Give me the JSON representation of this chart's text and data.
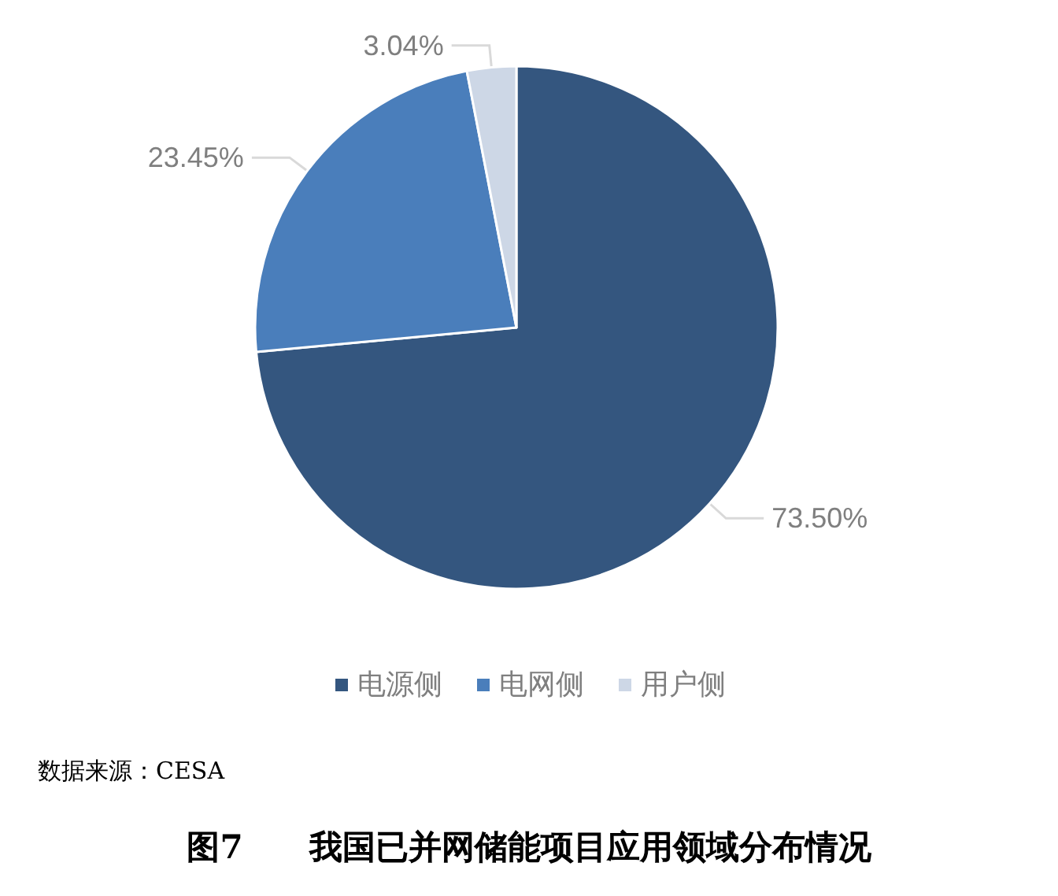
{
  "chart_data": {
    "type": "pie",
    "title": "图7　　我国已并网储能项目应用领域分布情况",
    "categories": [
      "电源侧",
      "电网侧",
      "用户侧"
    ],
    "values": [
      73.5,
      23.45,
      3.04
    ],
    "colors": [
      "#34567f",
      "#4a7ebb",
      "#cdd7e6"
    ],
    "value_labels": [
      "73.50%",
      "23.45%",
      "3.04%"
    ],
    "legend": "bottom",
    "annotations": [
      "数据来源：CESA"
    ]
  }
}
